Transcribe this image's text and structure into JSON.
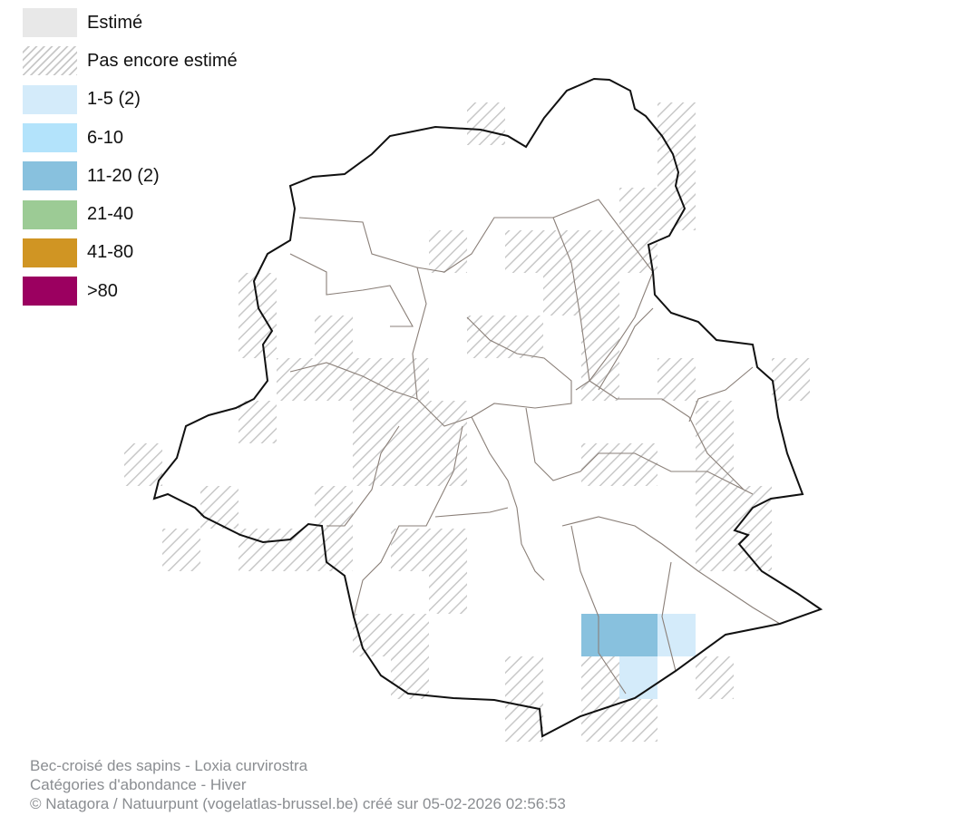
{
  "legend": [
    {
      "label": "Estimé",
      "color": "#e8e8e8",
      "pattern": "solid"
    },
    {
      "label": "Pas encore estimé",
      "color": "#cccccc",
      "pattern": "hatch"
    },
    {
      "label": "1-5 (2)",
      "color": "#d4ebfa",
      "pattern": "solid"
    },
    {
      "label": "6-10",
      "color": "#b3e3fb",
      "pattern": "solid"
    },
    {
      "label": "11-20 (2)",
      "color": "#88c1de",
      "pattern": "solid"
    },
    {
      "label": "21-40",
      "color": "#9ccb95",
      "pattern": "solid"
    },
    {
      "label": "41-80",
      "color": "#d09523",
      "pattern": "solid"
    },
    {
      "label": ">80",
      "color": "#9b0060",
      "pattern": "solid"
    }
  ],
  "cells": {
    "hatched": [
      [
        0,
        9
      ],
      [
        0,
        14
      ],
      [
        1,
        14
      ],
      [
        2,
        13
      ],
      [
        2,
        14
      ],
      [
        3,
        8
      ],
      [
        3,
        10
      ],
      [
        3,
        11
      ],
      [
        3,
        12
      ],
      [
        3,
        13
      ],
      [
        4,
        3
      ],
      [
        4,
        11
      ],
      [
        4,
        12
      ],
      [
        5,
        3
      ],
      [
        5,
        5
      ],
      [
        5,
        9
      ],
      [
        5,
        10
      ],
      [
        5,
        12
      ],
      [
        6,
        4
      ],
      [
        6,
        5
      ],
      [
        6,
        6
      ],
      [
        6,
        7
      ],
      [
        6,
        12
      ],
      [
        6,
        14
      ],
      [
        6,
        17
      ],
      [
        7,
        3
      ],
      [
        7,
        6
      ],
      [
        7,
        7
      ],
      [
        7,
        8
      ],
      [
        7,
        15
      ],
      [
        8,
        0
      ],
      [
        8,
        6
      ],
      [
        8,
        7
      ],
      [
        8,
        8
      ],
      [
        8,
        12
      ],
      [
        8,
        13
      ],
      [
        8,
        15
      ],
      [
        9,
        2
      ],
      [
        9,
        5
      ],
      [
        9,
        15
      ],
      [
        9,
        16
      ],
      [
        10,
        1
      ],
      [
        10,
        3
      ],
      [
        10,
        4
      ],
      [
        10,
        5
      ],
      [
        10,
        7
      ],
      [
        10,
        8
      ],
      [
        10,
        15
      ],
      [
        10,
        16
      ],
      [
        11,
        8
      ],
      [
        12,
        6
      ],
      [
        12,
        7
      ],
      [
        13,
        7
      ],
      [
        13,
        10
      ],
      [
        13,
        12
      ],
      [
        13,
        15
      ],
      [
        14,
        10
      ],
      [
        14,
        12
      ],
      [
        14,
        13
      ]
    ],
    "category_1_5": [
      [
        12,
        14
      ],
      [
        13,
        13
      ]
    ],
    "category_11_20": [
      [
        12,
        12
      ],
      [
        12,
        13
      ]
    ]
  },
  "footer": {
    "line1": "Bec-croisé des sapins - Loxia curvirostra",
    "line2": "Catégories d'abondance - Hiver",
    "line3": "© Natagora / Natuurpunt (vogelatlas-brussel.be) créé sur 05-02-2026 02:56:53"
  }
}
